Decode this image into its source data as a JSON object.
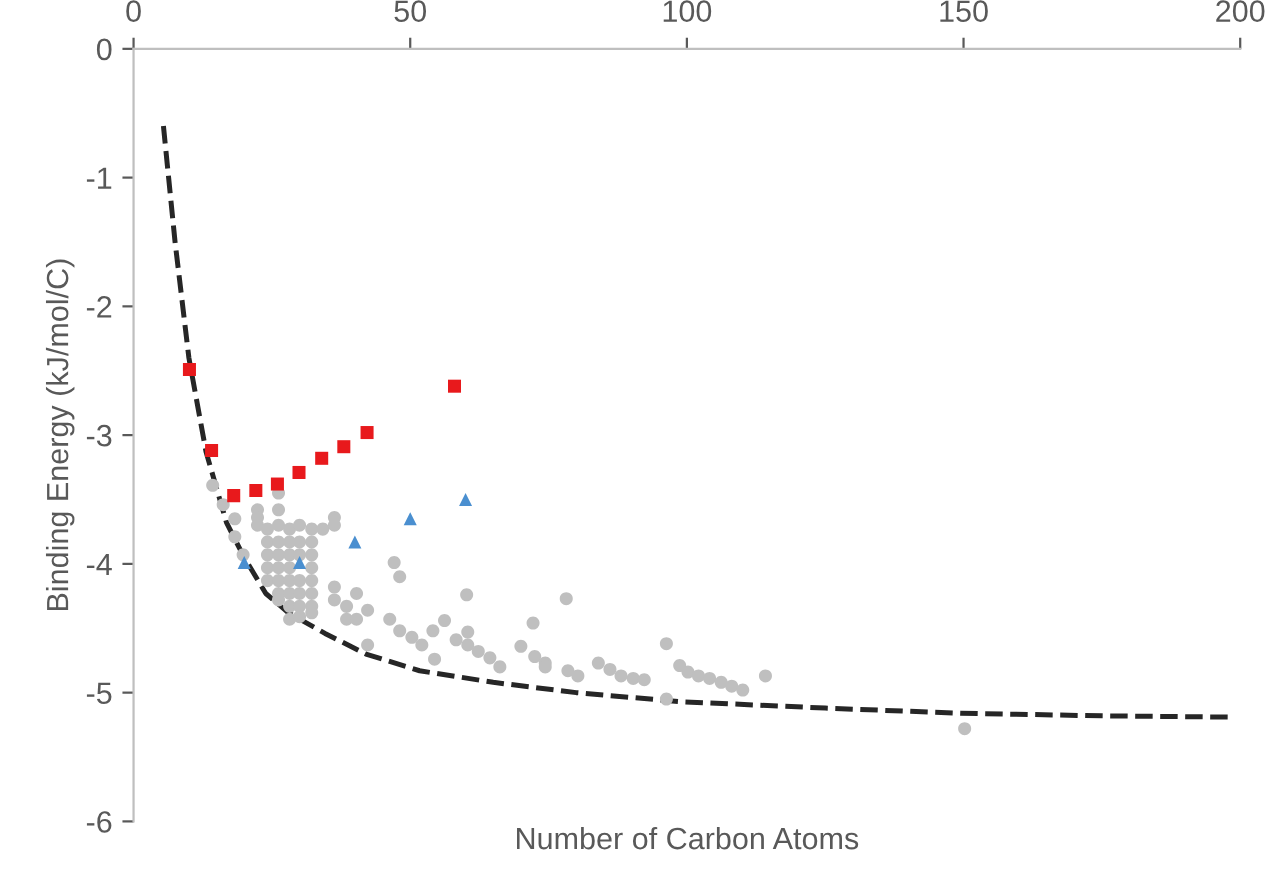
{
  "chart_data": {
    "type": "scatter",
    "xlabel": "Number of Carbon Atoms",
    "ylabel": "Binding Energy (kJ/mol/C)",
    "xlim": [
      0,
      200
    ],
    "ylim": [
      -6,
      0
    ],
    "xticks": [
      0,
      50,
      100,
      150,
      200
    ],
    "yticks": [
      -6,
      -5,
      -4,
      -3,
      -2,
      -1,
      0
    ],
    "grid": false,
    "series": [
      {
        "marker": "circle",
        "color": "#bfbfbf",
        "x": [
          14.3,
          16.2,
          18.3,
          18.3,
          19.8,
          22.4,
          22.4,
          22.4,
          24.2,
          24.2,
          24.2,
          24.2,
          24.2,
          26.2,
          26.2,
          26.2,
          26.2,
          26.2,
          26.2,
          26.2,
          26.2,
          26.2,
          28.2,
          28.2,
          28.2,
          28.2,
          28.2,
          28.2,
          28.2,
          28.2,
          30.0,
          30.0,
          30.0,
          30.0,
          30.0,
          30.0,
          30.0,
          32.2,
          32.2,
          32.2,
          32.2,
          32.2,
          32.2,
          32.2,
          32.2,
          34.2,
          36.3,
          36.3,
          36.3,
          36.3,
          38.5,
          38.5,
          40.3,
          40.3,
          42.3,
          42.3,
          46.3,
          47.1,
          48.1,
          48.1,
          50.3,
          52.1,
          54.1,
          54.4,
          56.2,
          58.3,
          60.2,
          60.4,
          60.4,
          62.3,
          64.4,
          66.2,
          70.0,
          72.2,
          72.5,
          74.4,
          74.4,
          78.2,
          78.5,
          80.3,
          84.0,
          86.1,
          88.1,
          90.3,
          92.3,
          96.3,
          96.3,
          98.7,
          100.2,
          102.1,
          104.1,
          106.2,
          108.1,
          110.1,
          114.2,
          150.2
        ],
        "values": [
          -3.39,
          -3.54,
          -3.65,
          -3.79,
          -3.93,
          -3.58,
          -3.64,
          -3.7,
          -3.73,
          -3.83,
          -3.93,
          -4.03,
          -4.13,
          -3.45,
          -3.58,
          -3.7,
          -3.83,
          -3.93,
          -4.03,
          -4.13,
          -4.23,
          -4.28,
          -3.73,
          -3.83,
          -3.93,
          -4.03,
          -4.13,
          -4.23,
          -4.33,
          -4.43,
          -3.7,
          -3.83,
          -3.93,
          -4.13,
          -4.23,
          -4.33,
          -4.41,
          -3.73,
          -3.83,
          -3.93,
          -4.03,
          -4.13,
          -4.23,
          -4.33,
          -4.38,
          -3.73,
          -3.64,
          -3.7,
          -4.18,
          -4.28,
          -4.33,
          -4.43,
          -4.23,
          -4.43,
          -4.36,
          -4.63,
          -4.43,
          -3.99,
          -4.1,
          -4.52,
          -4.57,
          -4.63,
          -4.52,
          -4.74,
          -4.44,
          -4.59,
          -4.24,
          -4.53,
          -4.63,
          -4.68,
          -4.73,
          -4.8,
          -4.64,
          -4.46,
          -4.72,
          -4.77,
          -4.8,
          -4.27,
          -4.83,
          -4.87,
          -4.77,
          -4.82,
          -4.87,
          -4.89,
          -4.9,
          -4.62,
          -5.05,
          -4.79,
          -4.84,
          -4.87,
          -4.89,
          -4.92,
          -4.95,
          -4.98,
          -4.87,
          -5.28
        ]
      },
      {
        "type": "scatter",
        "marker": "square",
        "color": "#e8191c",
        "x": [
          10.1,
          14.1,
          18.1,
          22.1,
          26.0,
          29.9,
          34.0,
          38.0,
          42.2,
          58.0
        ],
        "values": [
          -2.49,
          -3.12,
          -3.47,
          -3.43,
          -3.38,
          -3.29,
          -3.18,
          -3.09,
          -2.98,
          -2.62
        ]
      },
      {
        "type": "scatter",
        "marker": "triangle",
        "color": "#4a8fd0",
        "x": [
          20,
          30,
          40,
          50,
          60
        ],
        "values": [
          -3.99,
          -3.99,
          -3.83,
          -3.65,
          -3.5
        ]
      },
      {
        "type": "line",
        "marker": "none",
        "line_style": "dashed",
        "color": "#262626",
        "x": [
          5.4,
          7.5,
          10,
          13.1,
          16.8,
          20,
          23.9,
          28,
          34.6,
          42,
          51.7,
          65,
          80,
          98.7,
          125,
          149.4,
          175,
          198.8
        ],
        "values": [
          -0.6,
          -1.5,
          -2.4,
          -3.13,
          -3.68,
          -3.95,
          -4.23,
          -4.38,
          -4.54,
          -4.7,
          -4.83,
          -4.92,
          -5.0,
          -5.07,
          -5.12,
          -5.16,
          -5.18,
          -5.19
        ]
      }
    ]
  }
}
